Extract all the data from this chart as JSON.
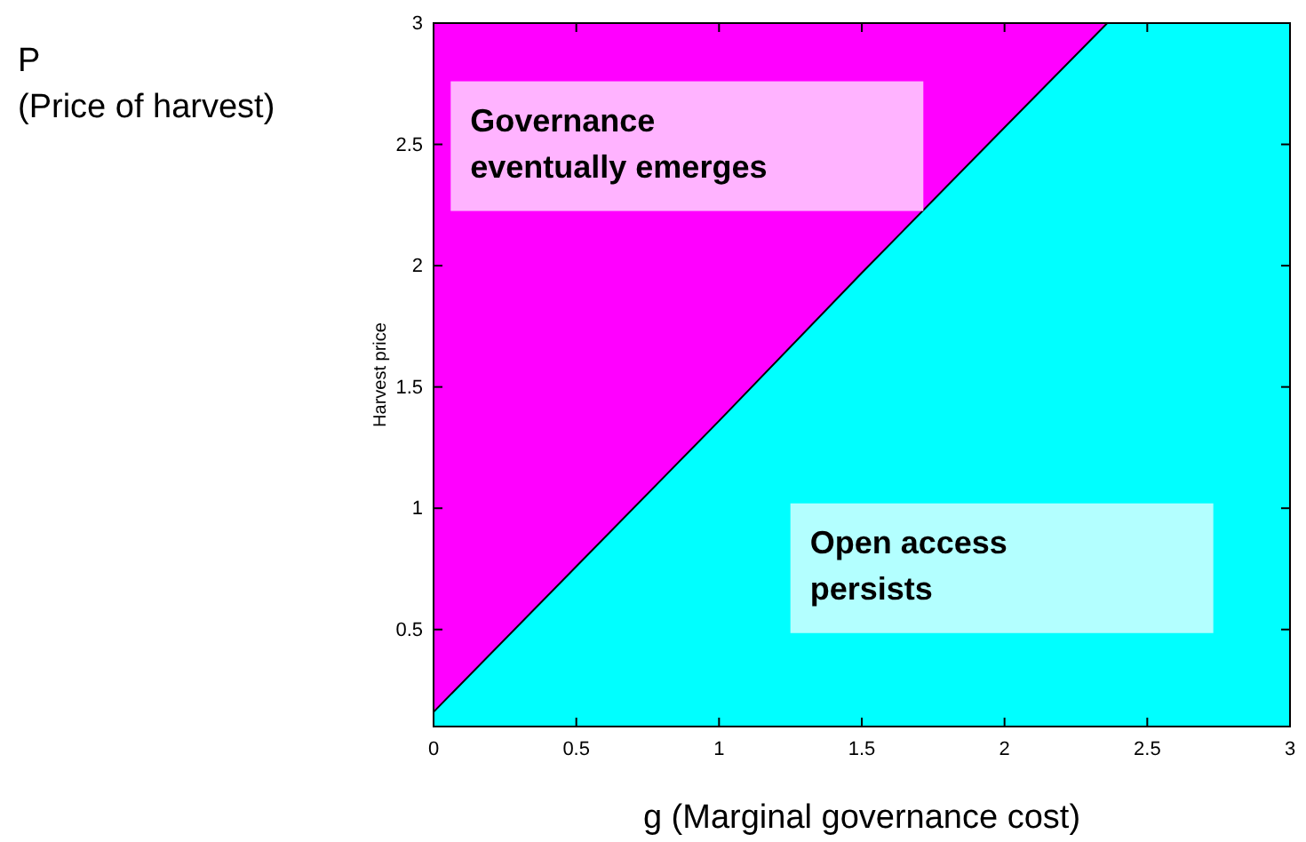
{
  "chart_data": {
    "type": "area",
    "xlabel": "g (Marginal governance cost)",
    "ylabel": "Harvest price",
    "x": [
      0,
      0.5,
      1,
      1.5,
      2,
      2.36,
      3
    ],
    "series": [
      {
        "color": "#ff00ff",
        "values": [
          3,
          3,
          3,
          3,
          3,
          3,
          null
        ]
      },
      {
        "color": "#00ffff",
        "values": [
          0.16,
          0.76,
          1.36,
          1.97,
          2.57,
          3,
          3
        ]
      }
    ],
    "xlim": [
      0,
      3
    ],
    "xticks": [
      0,
      0.5,
      1,
      1.5,
      2,
      2.5,
      3
    ],
    "ylim": [
      0.1,
      3
    ],
    "yticks": [
      0.5,
      1,
      1.5,
      2,
      2.5,
      3
    ],
    "annotations": [
      "P\n(Price of harvest)",
      "Governance\neventually emerges",
      "Open access\npersists"
    ]
  }
}
